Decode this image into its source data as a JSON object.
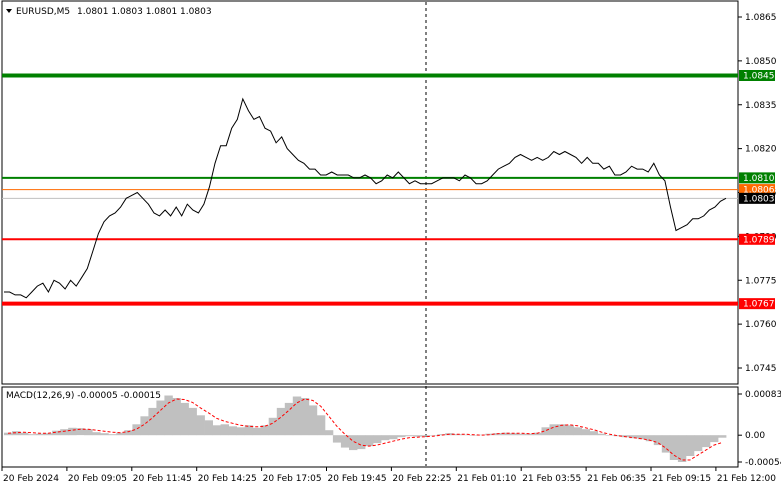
{
  "header": {
    "symbol": "EURUSD,M5",
    "ohlc": "1.0801 1.0803 1.0801 1.0803"
  },
  "price_axis": {
    "ticks": [
      "1.0865",
      "1.0850",
      "1.0835",
      "1.0820",
      "1.0805",
      "1.0790",
      "1.0775",
      "1.0760",
      "1.0745"
    ]
  },
  "levels": [
    {
      "name": "resistance-high",
      "label": "1.0845",
      "color": "#008000"
    },
    {
      "name": "resistance-low",
      "label": "1.0810",
      "color": "#008000"
    },
    {
      "name": "bid-line",
      "label": "1.0806",
      "color": "#ff6a00"
    },
    {
      "name": "current-price",
      "label": "1.0803",
      "color": "#000000"
    },
    {
      "name": "support-high",
      "label": "1.0789",
      "color": "#ff0000"
    },
    {
      "name": "support-low",
      "label": "1.0767",
      "color": "#ff0000"
    }
  ],
  "indicator": {
    "label": "MACD(12,26,9) -0.00005 -0.00015",
    "ticks": [
      "0.00083",
      "0.00",
      "-0.00054"
    ]
  },
  "time_axis": {
    "labels": [
      "20 Feb 2024",
      "20 Feb 09:05",
      "20 Feb 11:45",
      "20 Feb 14:25",
      "20 Feb 17:05",
      "20 Feb 19:45",
      "20 Feb 22:25",
      "21 Feb 01:10",
      "21 Feb 03:55",
      "21 Feb 06:35",
      "21 Feb 09:15",
      "21 Feb 12:00"
    ]
  },
  "chart_data": {
    "type": "line",
    "title": "EURUSD,M5",
    "ylim": [
      1.0741,
      1.0868
    ],
    "series": [
      {
        "name": "EURUSD,M5",
        "values": [
          1.0771,
          1.0771,
          1.077,
          1.077,
          1.0769,
          1.0771,
          1.0773,
          1.0774,
          1.0771,
          1.0775,
          1.0774,
          1.0772,
          1.0775,
          1.0773,
          1.0776,
          1.0779,
          1.0785,
          1.0791,
          1.0795,
          1.0797,
          1.0798,
          1.08,
          1.0803,
          1.0804,
          1.0805,
          1.0803,
          1.0801,
          1.0798,
          1.0797,
          1.0799,
          1.0797,
          1.08,
          1.0797,
          1.0801,
          1.0799,
          1.0798,
          1.0801,
          1.0807,
          1.0815,
          1.0821,
          1.0821,
          1.0827,
          1.083,
          1.0837,
          1.0833,
          1.083,
          1.0831,
          1.0827,
          1.0826,
          1.0822,
          1.0824,
          1.082,
          1.0818,
          1.0816,
          1.0815,
          1.0813,
          1.0813,
          1.0811,
          1.0811,
          1.0812,
          1.0811,
          1.0811,
          1.0811,
          1.081,
          1.081,
          1.0811,
          1.081,
          1.0808,
          1.0809,
          1.0811,
          1.081,
          1.0812,
          1.081,
          1.0808,
          1.0809,
          1.0808,
          1.0808,
          1.0808,
          1.0809,
          1.081,
          1.081,
          1.081,
          1.0809,
          1.0811,
          1.081,
          1.0808,
          1.0808,
          1.0809,
          1.0811,
          1.0813,
          1.0814,
          1.0815,
          1.0817,
          1.0818,
          1.0817,
          1.0816,
          1.0817,
          1.0816,
          1.0817,
          1.0819,
          1.0818,
          1.0819,
          1.0818,
          1.0817,
          1.0815,
          1.0817,
          1.0815,
          1.0815,
          1.0813,
          1.0814,
          1.0811,
          1.0811,
          1.0812,
          1.0814,
          1.0813,
          1.0813,
          1.0812,
          1.0815,
          1.0811,
          1.0809,
          1.08,
          1.0792,
          1.0793,
          1.0794,
          1.0796,
          1.0796,
          1.0797,
          1.0799,
          1.08,
          1.0802,
          1.0803
        ]
      },
      {
        "name": "MACD(12,26,9)",
        "values": [
          5e-05,
          8e-05,
          5e-05,
          2e-05,
          3e-05,
          4e-05,
          9e-05,
          0.00012,
          0.00015,
          0.00014,
          0.00012,
          6e-05,
          4e-05,
          2e-05,
          5e-05,
          0.0001,
          0.00022,
          0.00038,
          0.00055,
          0.0007,
          0.0008,
          0.00075,
          0.00065,
          0.00055,
          0.0004,
          0.0003,
          0.0002,
          0.00022,
          0.00018,
          0.00016,
          0.0002,
          0.00015,
          0.0002,
          0.00035,
          0.00055,
          0.00065,
          0.00078,
          0.00075,
          0.0006,
          0.0004,
          0.0001,
          -0.00015,
          -0.00025,
          -0.0003,
          -0.00028,
          -0.00022,
          -0.00016,
          -0.0001,
          -8e-05,
          -4e-05,
          -2e-05,
          -3e-05,
          -2e-05,
          -1e-05,
          2e-05,
          4e-05,
          2e-05,
          1e-05,
          -1e-05,
          1e-05,
          3e-05,
          4e-05,
          5e-05,
          4e-05,
          3e-05,
          3e-05,
          5e-05,
          0.00016,
          0.00022,
          0.00022,
          0.0002,
          0.00016,
          0.00012,
          8e-05,
          3e-05,
          0.0,
          -2e-05,
          -4e-05,
          -6e-05,
          -8e-05,
          -0.00012,
          -0.0002,
          -0.00035,
          -0.0005,
          -0.00054,
          -0.00042,
          -0.00032,
          -0.00024,
          -0.00014,
          -5e-05
        ]
      },
      {
        "name": "MACD signal",
        "values": [
          4e-05,
          5e-05,
          6e-05,
          5e-05,
          4e-05,
          4e-05,
          6e-05,
          8e-05,
          0.0001,
          0.00012,
          0.00012,
          0.0001,
          8e-05,
          6e-05,
          5e-05,
          7e-05,
          0.00012,
          0.00022,
          0.00035,
          0.0005,
          0.00065,
          0.00073,
          0.00072,
          0.00066,
          0.00055,
          0.00045,
          0.00034,
          0.00028,
          0.00024,
          0.0002,
          0.00018,
          0.00017,
          0.00018,
          0.00024,
          0.00036,
          0.0005,
          0.00065,
          0.00073,
          0.0007,
          0.00058,
          0.00038,
          0.00018,
          2e-05,
          -0.00012,
          -0.0002,
          -0.00022,
          -0.0002,
          -0.00016,
          -0.00012,
          -8e-05,
          -5e-05,
          -4e-05,
          -3e-05,
          -2e-05,
          0.0,
          2e-05,
          2e-05,
          2e-05,
          1e-05,
          0.0,
          1e-05,
          3e-05,
          4e-05,
          4e-05,
          4e-05,
          3e-05,
          4e-05,
          9e-05,
          0.00016,
          0.0002,
          0.00021,
          0.00019,
          0.00015,
          0.00011,
          6e-05,
          2e-05,
          -1e-05,
          -3e-05,
          -5e-05,
          -7e-05,
          -0.0001,
          -0.00015,
          -0.00026,
          -0.0004,
          -0.0005,
          -0.0005,
          -0.0004,
          -0.0003,
          -0.0002,
          -0.00015
        ]
      }
    ]
  }
}
